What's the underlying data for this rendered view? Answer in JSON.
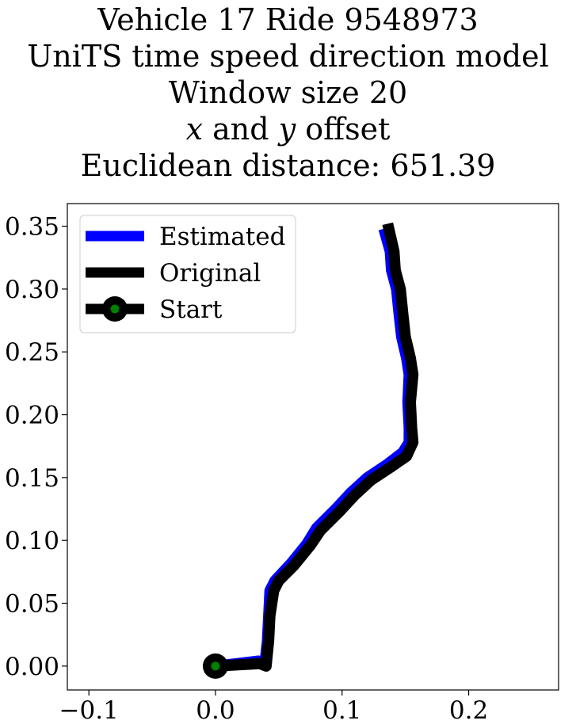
{
  "chart_data": {
    "type": "line",
    "title_lines": [
      "Vehicle 17 Ride 9548973",
      "UniTS time speed direction model",
      "Window size 20"
    ],
    "title_offset_line": {
      "x_var": "x",
      "middle": " and ",
      "y_var": "y",
      "suffix": " offset"
    },
    "title_distance": "Euclidean distance: 651.39",
    "xlim": [
      -0.117,
      0.271
    ],
    "ylim": [
      -0.019,
      0.368
    ],
    "xticks": [
      {
        "value": -0.1,
        "label": "−0.1"
      },
      {
        "value": 0.0,
        "label": "0.0"
      },
      {
        "value": 0.1,
        "label": "0.1"
      },
      {
        "value": 0.2,
        "label": "0.2"
      }
    ],
    "yticks": [
      {
        "value": 0.0,
        "label": "0.00"
      },
      {
        "value": 0.05,
        "label": "0.05"
      },
      {
        "value": 0.1,
        "label": "0.10"
      },
      {
        "value": 0.15,
        "label": "0.15"
      },
      {
        "value": 0.2,
        "label": "0.20"
      },
      {
        "value": 0.25,
        "label": "0.25"
      },
      {
        "value": 0.3,
        "label": "0.30"
      },
      {
        "value": 0.35,
        "label": "0.35"
      }
    ],
    "grid": false,
    "legend_position": "top-left",
    "series": [
      {
        "name": "Estimated",
        "color": "#0000ff",
        "points": [
          [
            0.0,
            0.0
          ],
          [
            0.034,
            0.004
          ],
          [
            0.039,
            0.002
          ],
          [
            0.041,
            0.02
          ],
          [
            0.042,
            0.04
          ],
          [
            0.043,
            0.06
          ],
          [
            0.047,
            0.068
          ],
          [
            0.06,
            0.082
          ],
          [
            0.072,
            0.097
          ],
          [
            0.08,
            0.11
          ],
          [
            0.095,
            0.125
          ],
          [
            0.107,
            0.138
          ],
          [
            0.12,
            0.15
          ],
          [
            0.135,
            0.16
          ],
          [
            0.148,
            0.17
          ],
          [
            0.153,
            0.178
          ],
          [
            0.153,
            0.19
          ],
          [
            0.152,
            0.21
          ],
          [
            0.153,
            0.232
          ],
          [
            0.151,
            0.245
          ],
          [
            0.147,
            0.262
          ],
          [
            0.145,
            0.28
          ],
          [
            0.143,
            0.3
          ],
          [
            0.139,
            0.315
          ],
          [
            0.138,
            0.33
          ],
          [
            0.133,
            0.348
          ]
        ]
      },
      {
        "name": "Original",
        "color": "#000000",
        "points": [
          [
            0.0,
            0.0
          ],
          [
            0.035,
            0.002
          ],
          [
            0.04,
            0.0
          ],
          [
            0.042,
            0.02
          ],
          [
            0.043,
            0.04
          ],
          [
            0.046,
            0.06
          ],
          [
            0.05,
            0.068
          ],
          [
            0.062,
            0.08
          ],
          [
            0.075,
            0.096
          ],
          [
            0.083,
            0.108
          ],
          [
            0.098,
            0.123
          ],
          [
            0.11,
            0.136
          ],
          [
            0.123,
            0.148
          ],
          [
            0.138,
            0.158
          ],
          [
            0.151,
            0.167
          ],
          [
            0.156,
            0.178
          ],
          [
            0.155,
            0.19
          ],
          [
            0.154,
            0.21
          ],
          [
            0.156,
            0.232
          ],
          [
            0.154,
            0.245
          ],
          [
            0.15,
            0.262
          ],
          [
            0.148,
            0.28
          ],
          [
            0.146,
            0.3
          ],
          [
            0.142,
            0.315
          ],
          [
            0.141,
            0.33
          ],
          [
            0.136,
            0.352
          ]
        ]
      }
    ],
    "start_point": {
      "name": "Start",
      "x": 0.0,
      "y": 0.0,
      "marker_color": "#000000",
      "center_color": "#008000"
    }
  }
}
